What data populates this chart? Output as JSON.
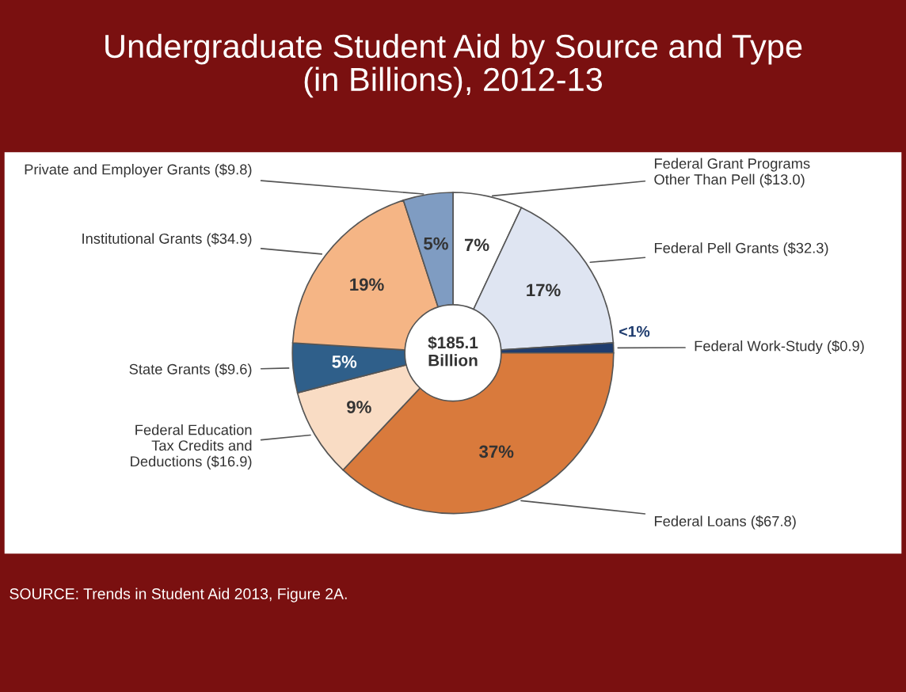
{
  "chart_data": {
    "type": "donut",
    "title": "Undergraduate Student Aid by Source and Type\n(in Billions), 2012-13",
    "categories": [
      "Federal Grant Programs\nOther Than Pell ($13.0)",
      "Federal Pell Grants ($32.3)",
      "Federal Work-Study ($0.9)",
      "Federal Loans ($67.8)",
      "Federal Education\nTax Credits and\nDeductions ($16.9)",
      "State Grants ($9.6)",
      "Institutional Grants ($34.9)",
      "Private and Employer Grants ($9.8)"
    ],
    "values": [
      7,
      17,
      1,
      37,
      9,
      5,
      19,
      5
    ],
    "value_labels": [
      "7%",
      "17%",
      "<1%",
      "37%",
      "9%",
      "5%",
      "19%",
      "5%"
    ],
    "colors": [
      "#ffffff",
      "#dfe5f2",
      "#1f3c6e",
      "#d97a3c",
      "#f9dcc4",
      "#2f5f8a",
      "#f5b585",
      "#7f9cc2"
    ],
    "legend": false,
    "annotations": [
      "$185.1\nBillion",
      "SOURCE: Trends in Student Aid 2013, Figure 2A."
    ]
  }
}
